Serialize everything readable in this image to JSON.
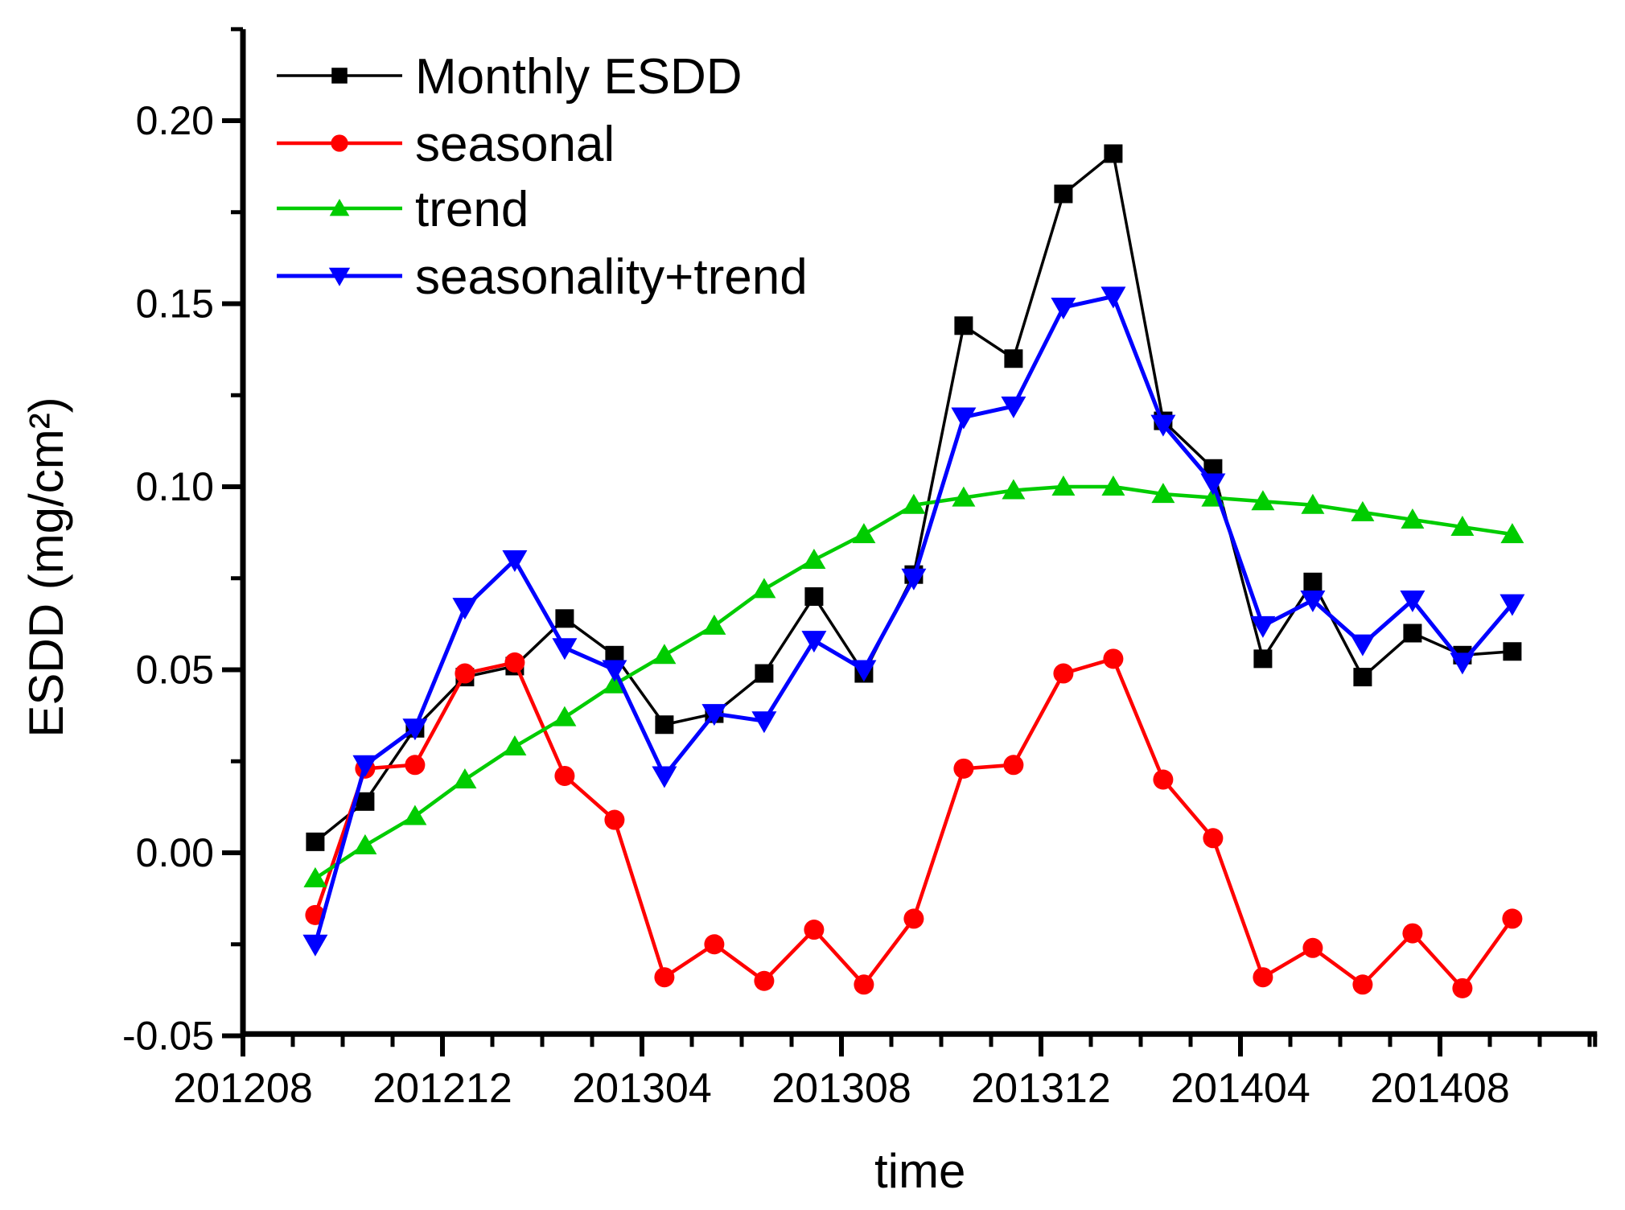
{
  "page": {
    "background": "#ffffff"
  },
  "chart_data": {
    "type": "line",
    "title": "",
    "xlabel": "time",
    "ylabel": "ESDD (mg/cm²)",
    "grid": false,
    "legend_position": "top-left-inside",
    "x_axis": {
      "tick_labels": [
        "201208",
        "201212",
        "201304",
        "201308",
        "201312",
        "201404",
        "201408"
      ],
      "tick_month_offsets": [
        0,
        4,
        8,
        12,
        16,
        20,
        24
      ],
      "minor_tick_months": [
        1,
        2,
        3,
        5,
        6,
        7,
        9,
        10,
        11,
        13,
        14,
        15,
        17,
        18,
        19,
        21,
        22,
        23,
        25,
        26,
        27
      ],
      "range_months": [
        0,
        27.15
      ]
    },
    "y_axis": {
      "ylim": [
        -0.0495,
        0.225
      ],
      "major_ticks": [
        -0.05,
        0.0,
        0.05,
        0.1,
        0.15,
        0.2
      ],
      "tick_labels": [
        "-0.05",
        "0.00",
        "0.05",
        "0.10",
        "0.15",
        "0.20"
      ],
      "minor_ticks": [
        -0.025,
        0.025,
        0.075,
        0.125,
        0.175,
        0.225
      ]
    },
    "categories": [
      "201209",
      "201210",
      "201211",
      "201212",
      "201301",
      "201302",
      "201303",
      "201304",
      "201305",
      "201306",
      "201307",
      "201308",
      "201309",
      "201310",
      "201311",
      "201312",
      "201401",
      "201402",
      "201403",
      "201404",
      "201405",
      "201406",
      "201407",
      "201408",
      "201409"
    ],
    "first_point_month_offset": 1.45,
    "series": [
      {
        "name": "Monthly ESDD",
        "color": "#000000",
        "marker": "square",
        "line_width": 3.5,
        "values": [
          0.003,
          0.014,
          0.034,
          0.048,
          0.051,
          0.064,
          0.054,
          0.035,
          0.038,
          0.049,
          0.07,
          0.049,
          0.076,
          0.144,
          0.135,
          0.18,
          0.191,
          0.118,
          0.105,
          0.053,
          0.074,
          0.048,
          0.06,
          0.054,
          0.055
        ]
      },
      {
        "name": "seasonal",
        "color": "#ff0000",
        "marker": "circle",
        "line_width": 4.5,
        "values": [
          -0.017,
          0.023,
          0.024,
          0.049,
          0.052,
          0.021,
          0.009,
          -0.034,
          -0.025,
          -0.035,
          -0.021,
          -0.036,
          -0.018,
          0.023,
          0.024,
          0.049,
          0.053,
          0.02,
          0.004,
          -0.034,
          -0.026,
          -0.036,
          -0.022,
          -0.037,
          -0.018
        ]
      },
      {
        "name": "trend",
        "color": "#00cc00",
        "marker": "triangle-up",
        "line_width": 4.5,
        "values": [
          -0.007,
          0.002,
          0.01,
          0.02,
          0.029,
          0.037,
          0.046,
          0.054,
          0.062,
          0.072,
          0.08,
          0.087,
          0.095,
          0.097,
          0.099,
          0.1,
          0.1,
          0.098,
          0.097,
          0.096,
          0.095,
          0.093,
          0.091,
          0.089,
          0.087
        ]
      },
      {
        "name": "seasonality+trend",
        "color": "#0000ff",
        "marker": "triangle-down",
        "line_width": 5,
        "values": [
          -0.025,
          0.024,
          0.034,
          0.067,
          0.08,
          0.056,
          0.05,
          0.021,
          0.038,
          0.036,
          0.058,
          0.05,
          0.075,
          0.119,
          0.122,
          0.149,
          0.152,
          0.117,
          0.101,
          0.062,
          0.069,
          0.057,
          0.069,
          0.052,
          0.068
        ]
      }
    ]
  }
}
